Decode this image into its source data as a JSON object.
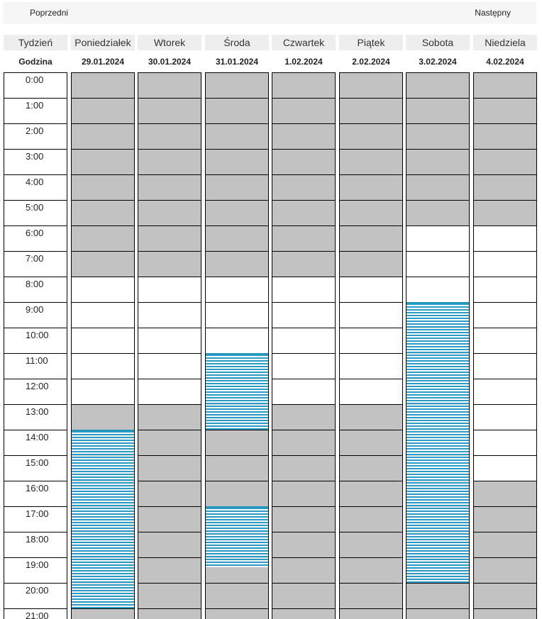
{
  "nav": {
    "prev_label": "Poprzedni",
    "next_label": "Następny"
  },
  "header": {
    "week_label": "Tydzień",
    "hour_label": "Godzina"
  },
  "hours": [
    "0:00",
    "1:00",
    "2:00",
    "3:00",
    "4:00",
    "5:00",
    "6:00",
    "7:00",
    "8:00",
    "9:00",
    "10:00",
    "11:00",
    "12:00",
    "13:00",
    "14:00",
    "15:00",
    "16:00",
    "17:00",
    "18:00",
    "19:00",
    "20:00",
    "21:00"
  ],
  "days": [
    {
      "name": "Poniedziałek",
      "date": "29.01.2024",
      "available_hours": [
        8,
        13
      ],
      "bookings": [
        [
          14,
          21
        ]
      ]
    },
    {
      "name": "Wtorek",
      "date": "30.01.2024",
      "available_hours": [
        8,
        13
      ],
      "bookings": []
    },
    {
      "name": "Środa",
      "date": "31.01.2024",
      "available_hours": [
        8,
        13
      ],
      "bookings": [
        [
          11,
          14
        ],
        [
          17,
          19.4
        ]
      ]
    },
    {
      "name": "Czwartek",
      "date": "1.02.2024",
      "available_hours": [
        8,
        13
      ],
      "bookings": []
    },
    {
      "name": "Piątek",
      "date": "2.02.2024",
      "available_hours": [
        8,
        13
      ],
      "bookings": []
    },
    {
      "name": "Sobota",
      "date": "3.02.2024",
      "available_hours": [
        6,
        16
      ],
      "bookings": [
        [
          9,
          20
        ]
      ]
    },
    {
      "name": "Niedziela",
      "date": "4.02.2024",
      "available_hours": [
        6,
        16
      ],
      "bookings": []
    }
  ],
  "colors": {
    "unavailable": "#c2c2c2",
    "available": "#ffffff",
    "booking": "#2a9bc4",
    "header_bg": "#eeeeee"
  }
}
